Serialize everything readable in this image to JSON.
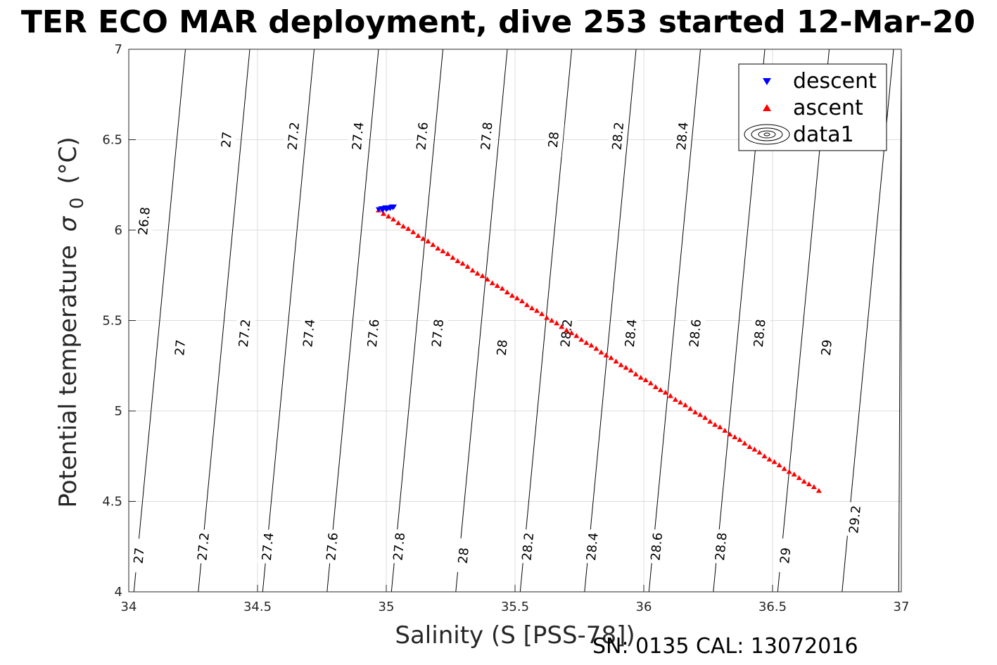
{
  "figure": {
    "title": "TER ECO MAR deployment, dive 253 started 12-Mar-20",
    "footer": "SN: 0135  CAL: 13072016"
  },
  "chart_data": {
    "type": "scatter",
    "title": "TER ECO MAR deployment, dive 253 started 12-Mar-20",
    "xlabel": "Salinity (S [PSS-78])",
    "ylabel_main": "Potential temperature",
    "ylabel_symbol": "σ",
    "ylabel_subscript": "0",
    "ylabel_unit": "(°C)",
    "xlim": [
      34,
      37
    ],
    "ylim": [
      4,
      7
    ],
    "xticks": [
      "34",
      "34.5",
      "35",
      "35.5",
      "36",
      "36.5",
      "37"
    ],
    "yticks": [
      "4",
      "4.5",
      "5",
      "5.5",
      "6",
      "6.5",
      "7"
    ],
    "grid": true,
    "legend_position": "top-right",
    "legend": [
      {
        "label": "descent",
        "marker": "triangle-down",
        "color": "#0000ff"
      },
      {
        "label": "ascent",
        "marker": "triangle-up",
        "color": "#ff0000"
      },
      {
        "label": "data1",
        "marker": "contour",
        "color": "#000000"
      }
    ],
    "series": [
      {
        "name": "descent",
        "color": "#0000ff",
        "marker": "triangle-down",
        "x": [
          34.97,
          34.98,
          34.985,
          34.99,
          34.995,
          35.0,
          35.005,
          35.01,
          35.015,
          35.02,
          35.025,
          35.03
        ],
        "y": [
          6.115,
          6.12,
          6.11,
          6.12,
          6.125,
          6.115,
          6.12,
          6.125,
          6.12,
          6.13,
          6.125,
          6.13
        ]
      },
      {
        "name": "ascent",
        "color": "#ff0000",
        "marker": "triangle-up",
        "x_start": 34.97,
        "y_start": 6.11,
        "x_end": 36.68,
        "y_end": 4.56,
        "count": 90
      }
    ],
    "contours": {
      "color": "#000000",
      "lines": [
        {
          "x_at_y4": 34.02,
          "x_at_y7": 34.22
        },
        {
          "x_at_y4": 34.27,
          "x_at_y7": 34.47
        },
        {
          "x_at_y4": 34.52,
          "x_at_y7": 34.72
        },
        {
          "x_at_y4": 34.77,
          "x_at_y7": 34.97
        },
        {
          "x_at_y4": 35.02,
          "x_at_y7": 35.22
        },
        {
          "x_at_y4": 35.27,
          "x_at_y7": 35.47
        },
        {
          "x_at_y4": 35.52,
          "x_at_y7": 35.72
        },
        {
          "x_at_y4": 35.77,
          "x_at_y7": 35.97
        },
        {
          "x_at_y4": 36.02,
          "x_at_y7": 36.22
        },
        {
          "x_at_y4": 36.27,
          "x_at_y7": 36.47
        },
        {
          "x_at_y4": 36.52,
          "x_at_y7": 36.72
        },
        {
          "x_at_y4": 36.77,
          "x_at_y7": 36.97
        },
        {
          "x_at_y4": 36.99,
          "x_at_y7": 37.0
        }
      ],
      "labels": [
        {
          "text": "26.8",
          "x": 34.06,
          "y": 6.05
        },
        {
          "text": "27",
          "x": 34.38,
          "y": 6.5
        },
        {
          "text": "27.2",
          "x": 34.64,
          "y": 6.52
        },
        {
          "text": "27.4",
          "x": 34.89,
          "y": 6.52
        },
        {
          "text": "27.6",
          "x": 35.14,
          "y": 6.52
        },
        {
          "text": "27.8",
          "x": 35.39,
          "y": 6.52
        },
        {
          "text": "28",
          "x": 35.65,
          "y": 6.5
        },
        {
          "text": "28.2",
          "x": 35.9,
          "y": 6.52
        },
        {
          "text": "28.4",
          "x": 36.15,
          "y": 6.52
        },
        {
          "text": "27",
          "x": 34.2,
          "y": 5.35
        },
        {
          "text": "27.2",
          "x": 34.45,
          "y": 5.43
        },
        {
          "text": "27.4",
          "x": 34.7,
          "y": 5.43
        },
        {
          "text": "27.6",
          "x": 34.95,
          "y": 5.43
        },
        {
          "text": "27.8",
          "x": 35.2,
          "y": 5.43
        },
        {
          "text": "28",
          "x": 35.45,
          "y": 5.35
        },
        {
          "text": "28.2",
          "x": 35.7,
          "y": 5.43
        },
        {
          "text": "28.4",
          "x": 35.95,
          "y": 5.43
        },
        {
          "text": "28.6",
          "x": 36.2,
          "y": 5.43
        },
        {
          "text": "28.8",
          "x": 36.45,
          "y": 5.43
        },
        {
          "text": "29",
          "x": 36.71,
          "y": 5.35
        },
        {
          "text": "27",
          "x": 34.04,
          "y": 4.2
        },
        {
          "text": "27.2",
          "x": 34.29,
          "y": 4.25
        },
        {
          "text": "27.4",
          "x": 34.54,
          "y": 4.25
        },
        {
          "text": "27.6",
          "x": 34.79,
          "y": 4.25
        },
        {
          "text": "27.8",
          "x": 35.05,
          "y": 4.25
        },
        {
          "text": "28",
          "x": 35.3,
          "y": 4.2
        },
        {
          "text": "28.2",
          "x": 35.55,
          "y": 4.25
        },
        {
          "text": "28.4",
          "x": 35.8,
          "y": 4.25
        },
        {
          "text": "28.6",
          "x": 36.05,
          "y": 4.25
        },
        {
          "text": "28.8",
          "x": 36.3,
          "y": 4.25
        },
        {
          "text": "29",
          "x": 36.55,
          "y": 4.2
        },
        {
          "text": "29.2",
          "x": 36.82,
          "y": 4.4
        }
      ]
    }
  }
}
